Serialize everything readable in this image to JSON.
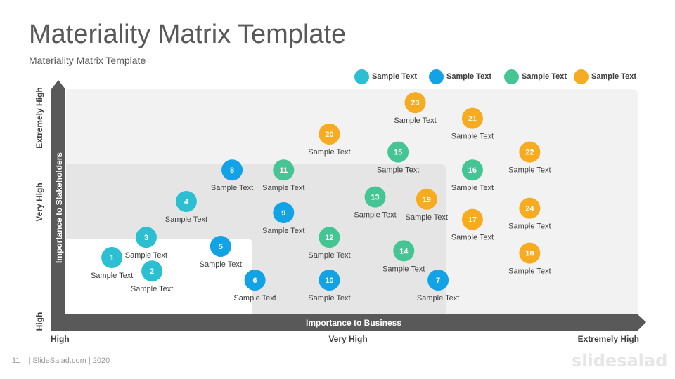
{
  "slide": {
    "title": "Materiality Matrix Template",
    "subtitle": "Materiality Matrix Template",
    "page_number": "11",
    "footer": "| SlideSalad.com | 2020",
    "brand": "slidesalad"
  },
  "colors": {
    "teal": "#2BBFD1",
    "blue": "#12A2E6",
    "green": "#45C593",
    "orange": "#F7AB21",
    "axis": "#595959",
    "zone_outer": "#F2F2F2",
    "zone_mid": "#E5E5E5",
    "zone_inner": "#FFFFFF"
  },
  "legend": [
    {
      "label": "Sample Text",
      "color": "#2BBFD1"
    },
    {
      "label": "Sample Text",
      "color": "#12A2E6"
    },
    {
      "label": "Sample Text",
      "color": "#45C593"
    },
    {
      "label": "Sample Text",
      "color": "#F7AB21"
    }
  ],
  "chart_data": {
    "type": "scatter",
    "xlabel": "Importance to Business",
    "ylabel": "Importance to Stakeholders",
    "x_ticks": [
      "High",
      "Very High",
      "Extremely High"
    ],
    "y_ticks": [
      "High",
      "Very High",
      "Extremely High"
    ],
    "xlim": [
      0,
      100
    ],
    "ylim": [
      0,
      100
    ],
    "points": [
      {
        "id": "1",
        "label": "Sample Text",
        "x": 8,
        "y": 25,
        "color": "#2BBFD1"
      },
      {
        "id": "2",
        "label": "Sample Text",
        "x": 15,
        "y": 19,
        "color": "#2BBFD1"
      },
      {
        "id": "3",
        "label": "Sample Text",
        "x": 14,
        "y": 34,
        "color": "#2BBFD1"
      },
      {
        "id": "4",
        "label": "Sample Text",
        "x": 21,
        "y": 50,
        "color": "#2BBFD1"
      },
      {
        "id": "5",
        "label": "Sample Text",
        "x": 27,
        "y": 30,
        "color": "#12A2E6"
      },
      {
        "id": "6",
        "label": "Sample Text",
        "x": 33,
        "y": 15,
        "color": "#12A2E6"
      },
      {
        "id": "7",
        "label": "Sample Text",
        "x": 65,
        "y": 15,
        "color": "#12A2E6"
      },
      {
        "id": "8",
        "label": "Sample Text",
        "x": 29,
        "y": 64,
        "color": "#12A2E6"
      },
      {
        "id": "9",
        "label": "Sample Text",
        "x": 38,
        "y": 45,
        "color": "#12A2E6"
      },
      {
        "id": "10",
        "label": "Sample Text",
        "x": 46,
        "y": 15,
        "color": "#12A2E6"
      },
      {
        "id": "11",
        "label": "Sample Text",
        "x": 38,
        "y": 64,
        "color": "#45C593"
      },
      {
        "id": "12",
        "label": "Sample Text",
        "x": 46,
        "y": 34,
        "color": "#45C593"
      },
      {
        "id": "13",
        "label": "Sample Text",
        "x": 54,
        "y": 52,
        "color": "#45C593"
      },
      {
        "id": "14",
        "label": "Sample Text",
        "x": 59,
        "y": 28,
        "color": "#45C593"
      },
      {
        "id": "15",
        "label": "Sample Text",
        "x": 58,
        "y": 72,
        "color": "#45C593"
      },
      {
        "id": "16",
        "label": "Sample Text",
        "x": 71,
        "y": 64,
        "color": "#45C593"
      },
      {
        "id": "17",
        "label": "Sample Text",
        "x": 71,
        "y": 42,
        "color": "#F7AB21"
      },
      {
        "id": "18",
        "label": "Sample Text",
        "x": 81,
        "y": 27,
        "color": "#F7AB21"
      },
      {
        "id": "19",
        "label": "Sample Text",
        "x": 63,
        "y": 51,
        "color": "#F7AB21"
      },
      {
        "id": "20",
        "label": "Sample Text",
        "x": 46,
        "y": 80,
        "color": "#F7AB21"
      },
      {
        "id": "21",
        "label": "Sample Text",
        "x": 71,
        "y": 87,
        "color": "#F7AB21"
      },
      {
        "id": "22",
        "label": "Sample Text",
        "x": 81,
        "y": 72,
        "color": "#F7AB21"
      },
      {
        "id": "23",
        "label": "Sample Text",
        "x": 61,
        "y": 94,
        "color": "#F7AB21"
      },
      {
        "id": "24",
        "label": "Sample Text",
        "x": 81,
        "y": 47,
        "color": "#F7AB21"
      }
    ]
  }
}
